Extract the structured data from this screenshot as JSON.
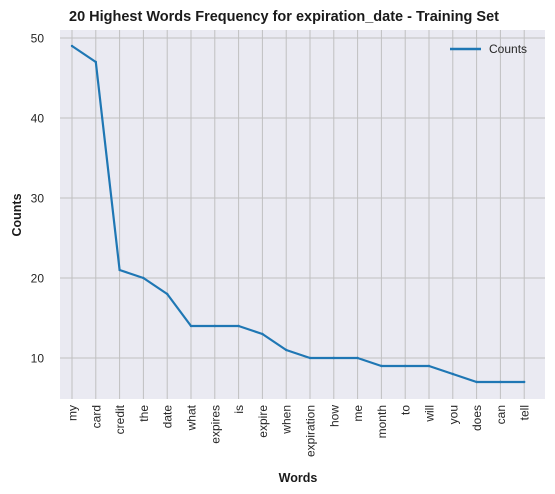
{
  "chart_data": {
    "type": "line",
    "title": "20 Highest Words Frequency for expiration_date - Training Set",
    "xlabel": "Words",
    "ylabel": "Counts",
    "categories": [
      "my",
      "card",
      "credit",
      "the",
      "date",
      "what",
      "expires",
      "is",
      "expire",
      "when",
      "expiration",
      "how",
      "me",
      "month",
      "to",
      "will",
      "you",
      "does",
      "can",
      "tell"
    ],
    "series": [
      {
        "name": "Counts",
        "values": [
          49,
          47,
          21,
          20,
          18,
          14,
          14,
          14,
          13,
          11,
          10,
          10,
          10,
          9,
          9,
          9,
          8,
          7,
          7,
          7
        ]
      }
    ],
    "yticks": [
      10,
      20,
      30,
      40,
      50
    ],
    "ylim": [
      5,
      51
    ],
    "grid": true,
    "legend_position": "top-right",
    "colors": {
      "line": "#1f77b4",
      "plot_background": "#eaeaf2",
      "grid": "#c0c0c0"
    }
  }
}
